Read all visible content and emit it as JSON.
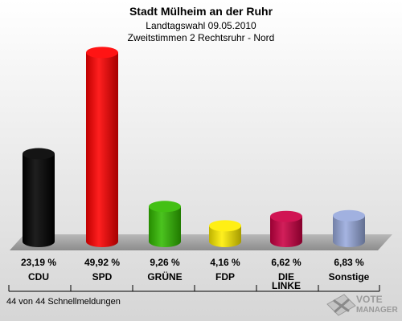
{
  "chart_data": {
    "type": "bar",
    "title": "Stadt Mülheim an der Ruhr",
    "subtitle": "Landtagswahl 09.05.2010",
    "subtitle2": "Zweitstimmen 2 Rechtsruhr - Nord",
    "categories": [
      "CDU",
      "SPD",
      "GRÜNE",
      "FDP",
      "DIE LINKE",
      "Sonstige"
    ],
    "category_lines": [
      [
        "CDU"
      ],
      [
        "SPD"
      ],
      [
        "GRÜNE"
      ],
      [
        "FDP"
      ],
      [
        "DIE",
        "LINKE"
      ],
      [
        "Sonstige"
      ]
    ],
    "values": [
      23.19,
      49.92,
      9.26,
      4.16,
      6.62,
      6.83
    ],
    "value_labels": [
      "23,19 %",
      "49,92 %",
      "9,26 %",
      "4,16 %",
      "6,62 %",
      "6,83 %"
    ],
    "colors": [
      "#000000",
      "#ff0000",
      "#33bb00",
      "#ffee00",
      "#cc0044",
      "#99aadd"
    ],
    "ylim": [
      0,
      50
    ],
    "grid": false,
    "legend": "none"
  },
  "footer": {
    "text": "44 von 44 Schnellmeldungen"
  },
  "brand": {
    "line1": "VOTE",
    "line2": "MANAGER",
    "icon": "ballot-cross-icon"
  }
}
